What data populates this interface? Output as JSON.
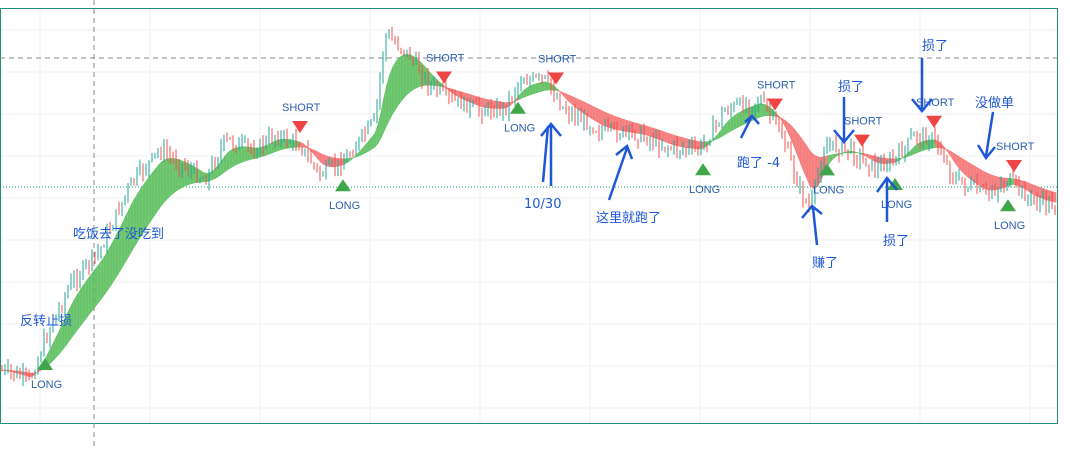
{
  "chart_data": {
    "type": "candlestick",
    "title": "",
    "xlabel": "",
    "ylabel": "",
    "grid": true,
    "colors": {
      "up_candle": "#26a69a",
      "down_candle": "#ef5350",
      "band_bull": "#5cbf5e",
      "band_bear": "#f57373",
      "long_marker": "#3fa64a",
      "short_marker": "#ef4444",
      "annotation": "#1f58d6",
      "frame": "#1e8f7a",
      "guide": "#888888"
    },
    "price_path": [
      [
        0,
        370
      ],
      [
        30,
        380
      ],
      [
        45,
        340
      ],
      [
        70,
        285
      ],
      [
        100,
        250
      ],
      [
        130,
        185
      ],
      [
        160,
        150
      ],
      [
        190,
        170
      ],
      [
        205,
        180
      ],
      [
        225,
        140
      ],
      [
        255,
        150
      ],
      [
        275,
        135
      ],
      [
        300,
        145
      ],
      [
        320,
        175
      ],
      [
        345,
        160
      ],
      [
        375,
        120
      ],
      [
        385,
        35
      ],
      [
        405,
        50
      ],
      [
        430,
        85
      ],
      [
        450,
        100
      ],
      [
        480,
        110
      ],
      [
        505,
        108
      ],
      [
        520,
        80
      ],
      [
        545,
        80
      ],
      [
        565,
        110
      ],
      [
        600,
        130
      ],
      [
        640,
        135
      ],
      [
        670,
        148
      ],
      [
        700,
        150
      ],
      [
        725,
        110
      ],
      [
        760,
        100
      ],
      [
        780,
        130
      ],
      [
        800,
        190
      ],
      [
        810,
        210
      ],
      [
        825,
        145
      ],
      [
        850,
        150
      ],
      [
        875,
        168
      ],
      [
        895,
        160
      ],
      [
        915,
        135
      ],
      [
        935,
        140
      ],
      [
        955,
        180
      ],
      [
        985,
        195
      ],
      [
        1010,
        180
      ],
      [
        1030,
        200
      ],
      [
        1055,
        205
      ]
    ],
    "signals": [
      {
        "type": "LONG",
        "x": 45,
        "label": "LONG"
      },
      {
        "type": "SHORT",
        "x": 300,
        "label": "SHORT"
      },
      {
        "type": "LONG",
        "x": 343,
        "label": "LONG"
      },
      {
        "type": "SHORT",
        "x": 444,
        "label": "SHORT"
      },
      {
        "type": "LONG",
        "x": 518,
        "label": "LONG"
      },
      {
        "type": "SHORT",
        "x": 556,
        "label": "SHORT"
      },
      {
        "type": "LONG",
        "x": 703,
        "label": "LONG"
      },
      {
        "type": "SHORT",
        "x": 775,
        "label": "SHORT"
      },
      {
        "type": "LONG",
        "x": 827,
        "label": "LONG"
      },
      {
        "type": "SHORT",
        "x": 862,
        "label": "SHORT"
      },
      {
        "type": "LONG",
        "x": 895,
        "label": "LONG"
      },
      {
        "type": "SHORT",
        "x": 934,
        "label": "SHORT"
      },
      {
        "type": "LONG",
        "x": 1008,
        "label": "LONG"
      },
      {
        "type": "SHORT",
        "x": 1014,
        "label": "SHORT"
      }
    ],
    "annotations": [
      "反转止损",
      "吃饭去了没吃到",
      "10/30",
      "这里就跑了",
      "跑了 -4",
      "赚了",
      "损了",
      "损了",
      "损了",
      "没做单"
    ]
  }
}
